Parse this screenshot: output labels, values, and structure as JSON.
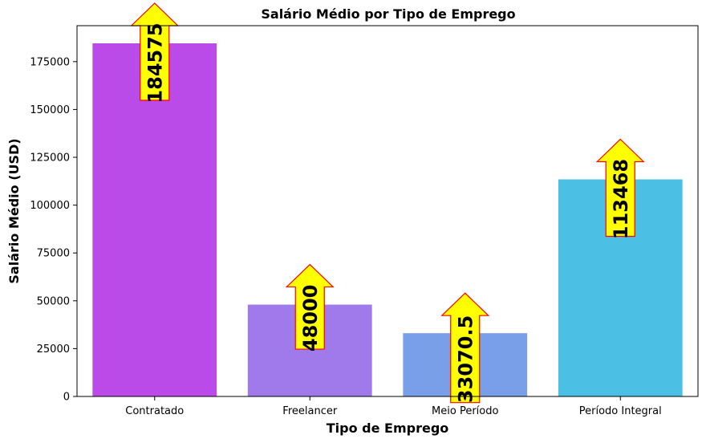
{
  "chart_data": {
    "type": "bar",
    "title": "Salário Médio por Tipo de Emprego",
    "xlabel": "Tipo de Emprego",
    "ylabel": "Salário Médio (USD)",
    "categories": [
      "Contratado",
      "Freelancer",
      "Meio Período",
      "Período Integral"
    ],
    "values": [
      184575,
      48000,
      33070.5,
      113468
    ],
    "value_labels": [
      "184575",
      "48000",
      "33070.5",
      "113468"
    ],
    "colors": [
      "#bb4be8",
      "#a07aea",
      "#7a9fe9",
      "#4bbfe4"
    ],
    "ylim": [
      0,
      193800
    ],
    "yticks": [
      0,
      25000,
      50000,
      75000,
      100000,
      125000,
      150000,
      175000
    ],
    "ytick_labels": [
      "0",
      "25000",
      "50000",
      "75000",
      "100000",
      "125000",
      "150000",
      "175000"
    ],
    "grid": false,
    "annotation_style": {
      "arrow_fill": "#ffff00",
      "arrow_edge": "#ff0000"
    }
  }
}
